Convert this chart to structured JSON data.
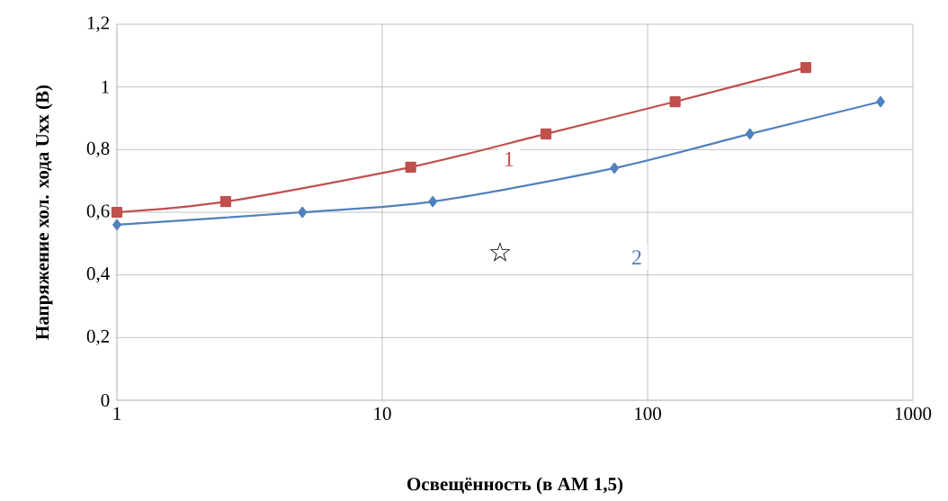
{
  "chart_data": {
    "type": "line",
    "xlabel": "Освещённость (в АМ 1,5)",
    "ylabel": "Напряжение хол. хода Uxx (В)",
    "log": "x",
    "grid": true,
    "xlim": [
      1,
      1000
    ],
    "xticks": [
      1,
      10,
      100,
      1000
    ],
    "ylim": [
      0,
      1.2
    ],
    "yticks": [
      0,
      {
        "value": 0.2,
        "label": "0,2"
      },
      {
        "value": 0.4,
        "label": "0,4"
      },
      {
        "value": 0.6,
        "label": "0,6"
      },
      {
        "value": 0.8,
        "label": "0,8"
      },
      1,
      {
        "value": 1.2,
        "label": "1,2"
      }
    ],
    "series": [
      {
        "name": "1",
        "color": "#c0504d",
        "marker": "square",
        "x": [
          1,
          2.57,
          12.8,
          41.4,
          127,
          395
        ],
        "values": [
          0.6,
          0.634,
          0.744,
          0.85,
          0.953,
          1.062
        ]
      },
      {
        "name": "2",
        "color": "#4f81bd",
        "marker": "diamond",
        "x": [
          1,
          5.0,
          15.5,
          75,
          243,
          755
        ],
        "values": [
          0.56,
          0.6,
          0.634,
          0.741,
          0.85,
          0.953
        ]
      }
    ],
    "annotations": [
      "☆"
    ]
  }
}
